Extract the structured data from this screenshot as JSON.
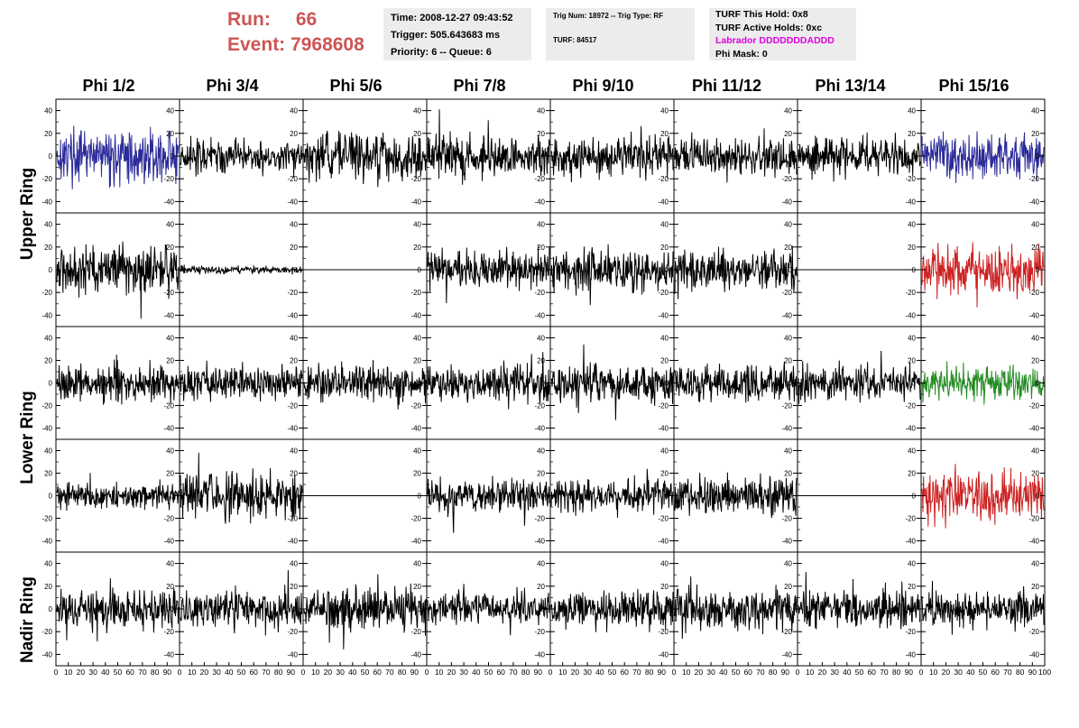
{
  "header": {
    "run_label": "Run:",
    "run_value": "66",
    "event_label": "Event:",
    "event_value": "7968608",
    "time": "Time: 2008-12-27 09:43:52",
    "trigger": "Trigger: 505.643683 ms",
    "priority": "Priority: 6 -- Queue: 6",
    "trig_num": "Trig Num: 18972 -- Trig Type: RF",
    "turf": "TURF: 84517",
    "turf_this_hold": "TURF This Hold: 0x8",
    "turf_active_holds": "TURF Active Holds: 0xc",
    "labrador": "Labrador DDDDDDDADDD",
    "phi_mask": "Phi Mask: 0"
  },
  "columns": [
    "Phi 1/2",
    "Phi 3/4",
    "Phi 5/6",
    "Phi 7/8",
    "Phi 9/10",
    "Phi 11/12",
    "Phi 13/14",
    "Phi 15/16"
  ],
  "rows": [
    "Upper Ring",
    "Lower Ring",
    "Nadir Ring"
  ],
  "colors": {
    "run_text": "#cc5555",
    "labrador_text": "#e000e0",
    "trace_default": "#000000",
    "trace_blue": "#2b2b9a",
    "trace_red": "#cc2222",
    "trace_green": "#228b22"
  },
  "chart_data": {
    "type": "line",
    "x_range": [
      0,
      100
    ],
    "y_range": [
      -50,
      50
    ],
    "y_ticks": [
      -40,
      -20,
      0,
      20,
      40
    ],
    "x_ticks": [
      "0",
      "10",
      "20",
      "30",
      "40",
      "50",
      "60",
      "70",
      "80",
      "90",
      "100"
    ],
    "panels": [
      {
        "row": 0,
        "col": 0,
        "amplitude": 20,
        "color": "blue"
      },
      {
        "row": 0,
        "col": 1,
        "amplitude": 14,
        "color": "black"
      },
      {
        "row": 0,
        "col": 2,
        "amplitude": 18,
        "color": "black"
      },
      {
        "row": 0,
        "col": 3,
        "amplitude": 16,
        "color": "black"
      },
      {
        "row": 0,
        "col": 4,
        "amplitude": 16,
        "color": "black"
      },
      {
        "row": 0,
        "col": 5,
        "amplitude": 15,
        "color": "black"
      },
      {
        "row": 0,
        "col": 6,
        "amplitude": 15,
        "color": "black"
      },
      {
        "row": 0,
        "col": 7,
        "amplitude": 18,
        "color": "blue"
      },
      {
        "row": 1,
        "col": 0,
        "amplitude": 20,
        "color": "black"
      },
      {
        "row": 1,
        "col": 1,
        "amplitude": 3,
        "color": "black"
      },
      {
        "row": 1,
        "col": 2,
        "amplitude": 0,
        "color": "black"
      },
      {
        "row": 1,
        "col": 3,
        "amplitude": 15,
        "color": "black"
      },
      {
        "row": 1,
        "col": 4,
        "amplitude": 16,
        "color": "black"
      },
      {
        "row": 1,
        "col": 5,
        "amplitude": 15,
        "color": "black"
      },
      {
        "row": 1,
        "col": 6,
        "amplitude": 0,
        "color": "black"
      },
      {
        "row": 1,
        "col": 7,
        "amplitude": 20,
        "color": "red"
      },
      {
        "row": 2,
        "col": 0,
        "amplitude": 15,
        "color": "black"
      },
      {
        "row": 2,
        "col": 1,
        "amplitude": 14,
        "color": "black"
      },
      {
        "row": 2,
        "col": 2,
        "amplitude": 14,
        "color": "black"
      },
      {
        "row": 2,
        "col": 3,
        "amplitude": 14,
        "color": "black"
      },
      {
        "row": 2,
        "col": 4,
        "amplitude": 15,
        "color": "black"
      },
      {
        "row": 2,
        "col": 5,
        "amplitude": 15,
        "color": "black"
      },
      {
        "row": 2,
        "col": 6,
        "amplitude": 14,
        "color": "black"
      },
      {
        "row": 2,
        "col": 7,
        "amplitude": 13,
        "color": "green"
      },
      {
        "row": 3,
        "col": 0,
        "amplitude": 10,
        "color": "black"
      },
      {
        "row": 3,
        "col": 1,
        "amplitude": 18,
        "color": "black"
      },
      {
        "row": 3,
        "col": 2,
        "amplitude": 0,
        "color": "black"
      },
      {
        "row": 3,
        "col": 3,
        "amplitude": 14,
        "color": "black"
      },
      {
        "row": 3,
        "col": 4,
        "amplitude": 13,
        "color": "black"
      },
      {
        "row": 3,
        "col": 5,
        "amplitude": 15,
        "color": "black"
      },
      {
        "row": 3,
        "col": 6,
        "amplitude": 0,
        "color": "black"
      },
      {
        "row": 3,
        "col": 7,
        "amplitude": 20,
        "color": "red"
      },
      {
        "row": 4,
        "col": 0,
        "amplitude": 15,
        "color": "black"
      },
      {
        "row": 4,
        "col": 1,
        "amplitude": 14,
        "color": "black"
      },
      {
        "row": 4,
        "col": 2,
        "amplitude": 16,
        "color": "black"
      },
      {
        "row": 4,
        "col": 3,
        "amplitude": 14,
        "color": "black"
      },
      {
        "row": 4,
        "col": 4,
        "amplitude": 15,
        "color": "black"
      },
      {
        "row": 4,
        "col": 5,
        "amplitude": 16,
        "color": "black"
      },
      {
        "row": 4,
        "col": 6,
        "amplitude": 16,
        "color": "black"
      },
      {
        "row": 4,
        "col": 7,
        "amplitude": 14,
        "color": "black"
      }
    ]
  }
}
